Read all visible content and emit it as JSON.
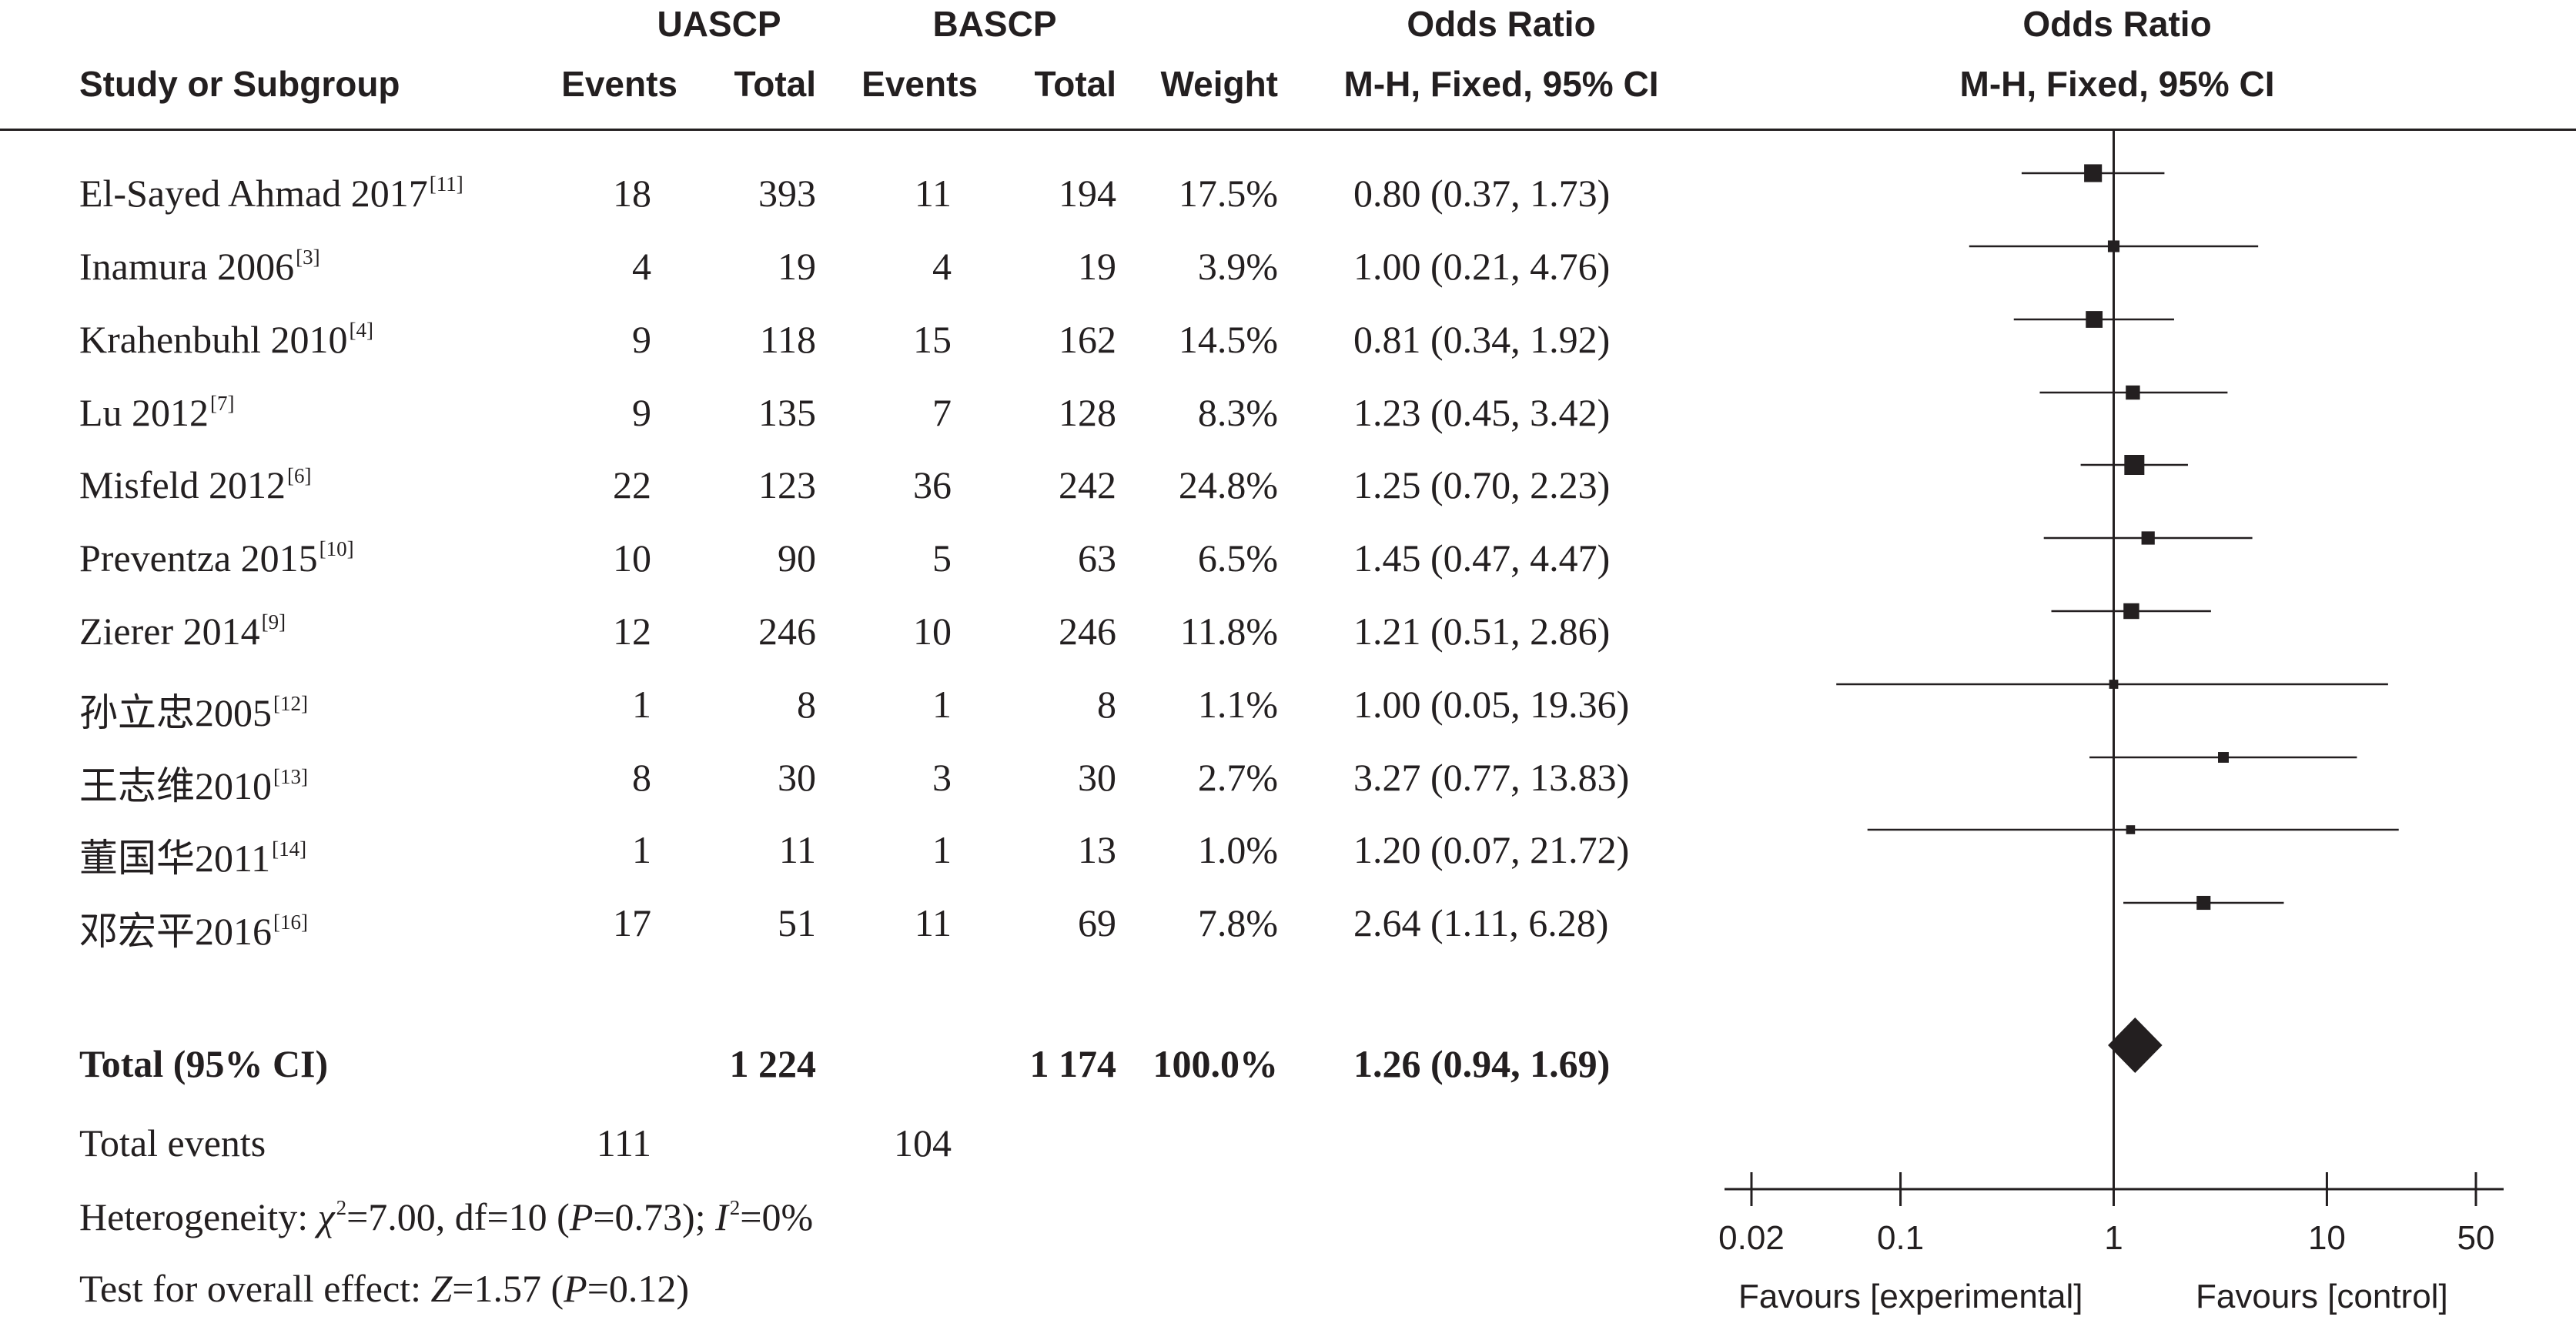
{
  "headers": {
    "group1": "UASCP",
    "group2": "BASCP",
    "or1_title": "Odds Ratio",
    "or1_sub": "M-H, Fixed, 95% CI",
    "or2_title": "Odds Ratio",
    "or2_sub": "M-H, Fixed, 95% CI",
    "study": "Study or Subgroup",
    "events1": "Events",
    "total1": "Total",
    "events2": "Events",
    "total2": "Total",
    "weight": "Weight"
  },
  "studies": [
    {
      "name": "El-Sayed Ahmad 2017",
      "ref": "[11]",
      "e1": "18",
      "t1": "393",
      "e2": "11",
      "t2": "194",
      "weight": "17.5%",
      "ci": "0.80 (0.37, 1.73)"
    },
    {
      "name": "Inamura 2006",
      "ref": "[3]",
      "e1": "4",
      "t1": "19",
      "e2": "4",
      "t2": "19",
      "weight": "3.9%",
      "ci": "1.00 (0.21, 4.76)"
    },
    {
      "name": "Krahenbuhl 2010",
      "ref": "[4]",
      "e1": "9",
      "t1": "118",
      "e2": "15",
      "t2": "162",
      "weight": "14.5%",
      "ci": "0.81 (0.34, 1.92)"
    },
    {
      "name": "Lu 2012",
      "ref": "[7]",
      "e1": "9",
      "t1": "135",
      "e2": "7",
      "t2": "128",
      "weight": "8.3%",
      "ci": "1.23 (0.45, 3.42)"
    },
    {
      "name": "Misfeld 2012",
      "ref": "[6]",
      "e1": "22",
      "t1": "123",
      "e2": "36",
      "t2": "242",
      "weight": "24.8%",
      "ci": "1.25 (0.70, 2.23)"
    },
    {
      "name": "Preventza 2015",
      "ref": "[10]",
      "e1": "10",
      "t1": "90",
      "e2": "5",
      "t2": "63",
      "weight": "6.5%",
      "ci": "1.45 (0.47, 4.47)"
    },
    {
      "name": "Zierer 2014",
      "ref": "[9]",
      "e1": "12",
      "t1": "246",
      "e2": "10",
      "t2": "246",
      "weight": "11.8%",
      "ci": "1.21 (0.51, 2.86)"
    },
    {
      "name": "孙立忠2005",
      "ref": "[12]",
      "e1": "1",
      "t1": "8",
      "e2": "1",
      "t2": "8",
      "weight": "1.1%",
      "ci": "1.00 (0.05, 19.36)"
    },
    {
      "name": "王志维2010",
      "ref": "[13]",
      "e1": "8",
      "t1": "30",
      "e2": "3",
      "t2": "30",
      "weight": "2.7%",
      "ci": "3.27 (0.77, 13.83)"
    },
    {
      "name": "董国华2011",
      "ref": "[14]",
      "e1": "1",
      "t1": "11",
      "e2": "1",
      "t2": "13",
      "weight": "1.0%",
      "ci": "1.20 (0.07, 21.72)"
    },
    {
      "name": "邓宏平2016",
      "ref": "[16]",
      "e1": "17",
      "t1": "51",
      "e2": "11",
      "t2": "69",
      "weight": "7.8%",
      "ci": "2.64 (1.11, 6.28)"
    }
  ],
  "total": {
    "label": "Total (95% CI)",
    "t1": "1 224",
    "t2": "1 174",
    "weight": "100.0%",
    "ci": "1.26 (0.94, 1.69)"
  },
  "total_events": {
    "label": "Total events",
    "e1": "111",
    "e2": "104"
  },
  "heterogeneity": {
    "prefix": "Heterogeneity: ",
    "chi": "χ",
    "chi_sup": "2",
    "mid": "=7.00, df=10 (",
    "p": "P",
    "pval": "=0.73); ",
    "i": "I",
    "i_sup": "2",
    "end": "=0%"
  },
  "overall": {
    "prefix": "Test for overall effect: ",
    "z": "Z",
    "zval": "=1.57 (",
    "p": "P",
    "pval": "=0.12)"
  },
  "axis": {
    "favours_left": "Favours [experimental]",
    "favours_right": "Favours [control]"
  },
  "chart_data": {
    "type": "forest",
    "x_scale": "log",
    "xlim": [
      0.02,
      50
    ],
    "null_line": 1,
    "ticks": [
      0.02,
      0.1,
      1,
      10,
      50
    ],
    "tick_labels": [
      "0.02",
      "0.1",
      "1",
      "10",
      "50"
    ],
    "points": [
      {
        "or": 0.8,
        "lo": 0.37,
        "hi": 1.73,
        "weight": 17.5
      },
      {
        "or": 1.0,
        "lo": 0.21,
        "hi": 4.76,
        "weight": 3.9
      },
      {
        "or": 0.81,
        "lo": 0.34,
        "hi": 1.92,
        "weight": 14.5
      },
      {
        "or": 1.23,
        "lo": 0.45,
        "hi": 3.42,
        "weight": 8.3
      },
      {
        "or": 1.25,
        "lo": 0.7,
        "hi": 2.23,
        "weight": 24.8
      },
      {
        "or": 1.45,
        "lo": 0.47,
        "hi": 4.47,
        "weight": 6.5
      },
      {
        "or": 1.21,
        "lo": 0.51,
        "hi": 2.86,
        "weight": 11.8
      },
      {
        "or": 1.0,
        "lo": 0.05,
        "hi": 19.36,
        "weight": 1.1
      },
      {
        "or": 3.27,
        "lo": 0.77,
        "hi": 13.83,
        "weight": 2.7
      },
      {
        "or": 1.2,
        "lo": 0.07,
        "hi": 21.72,
        "weight": 1.0
      },
      {
        "or": 2.64,
        "lo": 1.11,
        "hi": 6.28,
        "weight": 7.8
      }
    ],
    "pooled": {
      "or": 1.26,
      "lo": 0.94,
      "hi": 1.69
    }
  }
}
